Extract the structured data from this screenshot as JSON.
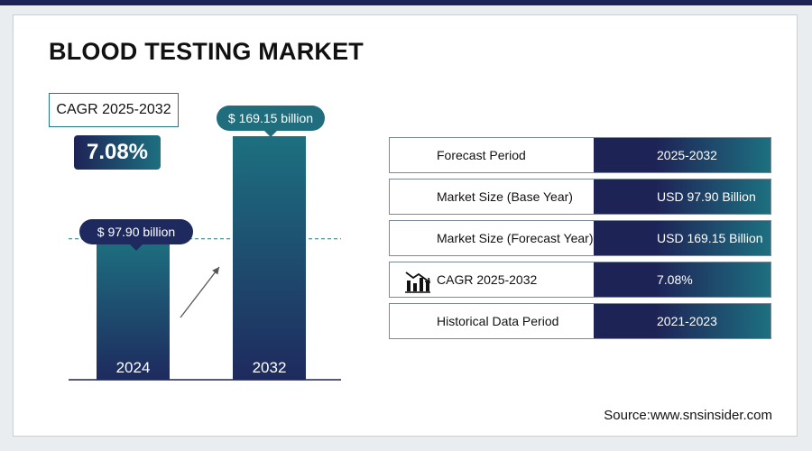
{
  "header": {
    "title": "BLOOD TESTING MARKET"
  },
  "cagr_box": {
    "label": "CAGR 2025-2032",
    "value": "7.08%"
  },
  "chart_data": {
    "type": "bar",
    "categories": [
      "2024",
      "2032"
    ],
    "values": [
      97.9,
      169.15
    ],
    "unit": "billion",
    "data_labels": [
      "$  97.90 billion",
      "$ 169.15 billion"
    ],
    "ylim": [
      0,
      169.15
    ],
    "reference_line": {
      "value": 97.9,
      "style": "dashed"
    },
    "colors": {
      "bar_top": "#1d7080",
      "bar_bottom": "#1e2a5e"
    }
  },
  "summary_table": {
    "rows": [
      {
        "label": "Forecast Period",
        "value": "2025-2032"
      },
      {
        "label": "Market Size (Base Year)",
        "value": "USD 97.90 Billion"
      },
      {
        "label": "Market Size (Forecast Year)",
        "value": "USD 169.15 Billion"
      },
      {
        "label": "CAGR 2025-2032",
        "value": "7.08%",
        "icon": "bar-chart-decline-icon"
      },
      {
        "label": "Historical Data Period",
        "value": "2021-2023"
      }
    ]
  },
  "footer": {
    "source": "Source:www.snsinsider.com"
  },
  "colors": {
    "navy": "#1e2356",
    "teal": "#1d7080",
    "bubble_left": "#1e2a5e",
    "bubble_right": "#1f6d7d"
  }
}
